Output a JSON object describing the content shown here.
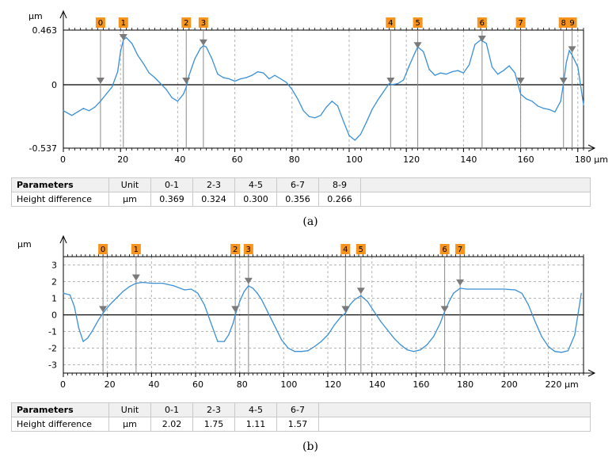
{
  "figures": [
    {
      "caption": "(a)",
      "y_unit": "µm",
      "x_unit_label": "180 µm",
      "table": {
        "header": [
          "Parameters",
          "Unit",
          "0-1",
          "2-3",
          "4-5",
          "6-7",
          "8-9"
        ],
        "row": [
          "Height difference",
          "µm",
          "0.369",
          "0.324",
          "0.300",
          "0.356",
          "0.266"
        ]
      }
    },
    {
      "caption": "(b)",
      "y_unit": "µm",
      "x_unit_label": "220 µm",
      "table": {
        "header": [
          "Parameters",
          "Unit",
          "0-1",
          "2-3",
          "4-5",
          "6-7"
        ],
        "row": [
          "Height difference",
          "µm",
          "2.02",
          "1.75",
          "1.11",
          "1.57"
        ]
      }
    }
  ],
  "colors": {
    "profile": "#3a8fd6",
    "marker_fill": "#f7941d",
    "marker_arrow": "#7a7a7a",
    "grid": "#b4b4b4"
  },
  "chart_data": [
    {
      "type": "line",
      "title": "",
      "xlabel": "µm",
      "ylabel": "µm",
      "xlim": [
        0,
        182
      ],
      "ylim": [
        -0.537,
        0.463
      ],
      "xticks": [
        0,
        20,
        40,
        60,
        80,
        100,
        120,
        140,
        160,
        180
      ],
      "yticks": [
        -0.537,
        0,
        0.463
      ],
      "ytick_labels": [
        "-0.537",
        "0",
        "0.463"
      ],
      "xtick_labels": [
        "0",
        "20",
        "40",
        "60",
        "80",
        "100",
        "120",
        "140",
        "160",
        "180 µm"
      ],
      "grid": true,
      "series": [
        {
          "x": [
            0,
            3,
            5,
            7,
            9,
            11,
            13,
            15,
            17,
            19,
            20,
            21,
            22,
            24,
            26,
            28,
            30,
            32,
            34,
            36,
            38,
            40,
            42,
            43,
            44,
            46,
            48,
            49,
            50,
            52,
            54,
            56,
            58,
            60,
            62,
            64,
            66,
            68,
            70,
            72,
            74,
            76,
            78,
            80,
            82,
            84,
            86,
            88,
            90,
            92,
            94,
            96,
            98,
            100,
            102,
            104,
            106,
            108,
            110,
            112,
            114,
            115,
            117,
            119,
            121,
            123,
            124,
            126,
            128,
            130,
            132,
            134,
            136,
            138,
            140,
            142,
            144,
            146,
            148,
            150,
            152,
            154,
            156,
            158,
            160,
            162,
            164,
            166,
            168,
            170,
            172,
            174,
            175,
            176,
            177,
            178,
            180,
            182
          ],
          "y": [
            -0.22,
            -0.26,
            -0.23,
            -0.2,
            -0.22,
            -0.19,
            -0.14,
            -0.08,
            -0.02,
            0.11,
            0.28,
            0.38,
            0.4,
            0.35,
            0.25,
            0.18,
            0.1,
            0.06,
            0.01,
            -0.04,
            -0.11,
            -0.14,
            -0.08,
            -0.02,
            0.08,
            0.22,
            0.31,
            0.33,
            0.32,
            0.22,
            0.09,
            0.06,
            0.05,
            0.03,
            0.05,
            0.06,
            0.08,
            0.11,
            0.1,
            0.05,
            0.08,
            0.05,
            0.02,
            -0.04,
            -0.12,
            -0.22,
            -0.27,
            -0.28,
            -0.26,
            -0.19,
            -0.14,
            -0.18,
            -0.31,
            -0.43,
            -0.47,
            -0.42,
            -0.32,
            -0.21,
            -0.13,
            -0.06,
            0.01,
            0.0,
            0.01,
            0.04,
            0.16,
            0.27,
            0.32,
            0.28,
            0.13,
            0.08,
            0.1,
            0.09,
            0.11,
            0.12,
            0.1,
            0.17,
            0.34,
            0.38,
            0.35,
            0.15,
            0.09,
            0.12,
            0.16,
            0.1,
            -0.08,
            -0.12,
            -0.14,
            -0.18,
            -0.2,
            -0.21,
            -0.23,
            -0.14,
            0.01,
            0.19,
            0.29,
            0.25,
            0.15,
            -0.17
          ]
        }
      ],
      "markers": [
        {
          "label": "0",
          "x": 13,
          "y": 0.0
        },
        {
          "label": "1",
          "x": 21,
          "y": 0.369
        },
        {
          "label": "2",
          "x": 43,
          "y": 0.0
        },
        {
          "label": "3",
          "x": 49,
          "y": 0.324
        },
        {
          "label": "4",
          "x": 114.5,
          "y": 0.0
        },
        {
          "label": "5",
          "x": 124,
          "y": 0.3
        },
        {
          "label": "6",
          "x": 146.5,
          "y": 0.356
        },
        {
          "label": "7",
          "x": 160,
          "y": 0.0
        },
        {
          "label": "8",
          "x": 175,
          "y": 0.0
        },
        {
          "label": "9",
          "x": 178,
          "y": 0.266
        }
      ]
    },
    {
      "type": "line",
      "title": "",
      "xlabel": "µm",
      "ylabel": "µm",
      "xlim": [
        0,
        236
      ],
      "ylim": [
        -3.5,
        3.5
      ],
      "xticks": [
        0,
        20,
        40,
        60,
        80,
        100,
        120,
        140,
        160,
        180,
        200,
        220
      ],
      "yticks": [
        -3,
        -2,
        -1,
        0,
        1,
        2,
        3
      ],
      "ytick_labels": [
        "-3",
        "-2",
        "-1",
        "0",
        "1",
        "2",
        "3"
      ],
      "xtick_labels": [
        "0",
        "20",
        "40",
        "60",
        "80",
        "100",
        "120",
        "140",
        "160",
        "180",
        "200",
        "220 µm"
      ],
      "grid": true,
      "series": [
        {
          "x": [
            0,
            3,
            5,
            7,
            9,
            11,
            13,
            16,
            18,
            21,
            24,
            27,
            30,
            33,
            36,
            40,
            45,
            50,
            55,
            58,
            61,
            64,
            67,
            70,
            73,
            75,
            77,
            78,
            80,
            82,
            84,
            86,
            88,
            90,
            93,
            96,
            99,
            102,
            105,
            108,
            111,
            114,
            117,
            120,
            123,
            126,
            128,
            130,
            132,
            135,
            138,
            141,
            144,
            147,
            150,
            153,
            156,
            159,
            162,
            165,
            168,
            171,
            173,
            175,
            177,
            180,
            183,
            186,
            190,
            195,
            200,
            205,
            208,
            211,
            214,
            217,
            220,
            223,
            226,
            229,
            232,
            235
          ],
          "y": [
            1.3,
            1.2,
            0.5,
            -0.8,
            -1.6,
            -1.4,
            -1.0,
            -0.3,
            0.1,
            0.6,
            1.0,
            1.4,
            1.7,
            1.9,
            1.95,
            1.9,
            1.9,
            1.75,
            1.5,
            1.55,
            1.3,
            0.6,
            -0.5,
            -1.6,
            -1.6,
            -1.2,
            -0.5,
            0.0,
            0.8,
            1.4,
            1.75,
            1.6,
            1.3,
            0.9,
            0.1,
            -0.7,
            -1.5,
            -2.0,
            -2.2,
            -2.2,
            -2.15,
            -1.9,
            -1.6,
            -1.2,
            -0.6,
            -0.1,
            0.1,
            0.6,
            0.9,
            1.15,
            0.8,
            0.2,
            -0.4,
            -0.9,
            -1.4,
            -1.8,
            -2.1,
            -2.2,
            -2.1,
            -1.8,
            -1.3,
            -0.5,
            0.2,
            0.8,
            1.3,
            1.6,
            1.55,
            1.55,
            1.55,
            1.55,
            1.55,
            1.5,
            1.3,
            0.6,
            -0.4,
            -1.3,
            -1.9,
            -2.2,
            -2.25,
            -2.15,
            -1.2,
            1.3
          ]
        }
      ],
      "markers": [
        {
          "label": "0",
          "x": 18,
          "y": 0.1
        },
        {
          "label": "1",
          "x": 33,
          "y": 2.0
        },
        {
          "label": "2",
          "x": 78,
          "y": 0.1
        },
        {
          "label": "3",
          "x": 84,
          "y": 1.8
        },
        {
          "label": "4",
          "x": 128,
          "y": 0.1
        },
        {
          "label": "5",
          "x": 135,
          "y": 1.2
        },
        {
          "label": "6",
          "x": 173,
          "y": 0.1
        },
        {
          "label": "7",
          "x": 180,
          "y": 1.7
        }
      ]
    }
  ]
}
